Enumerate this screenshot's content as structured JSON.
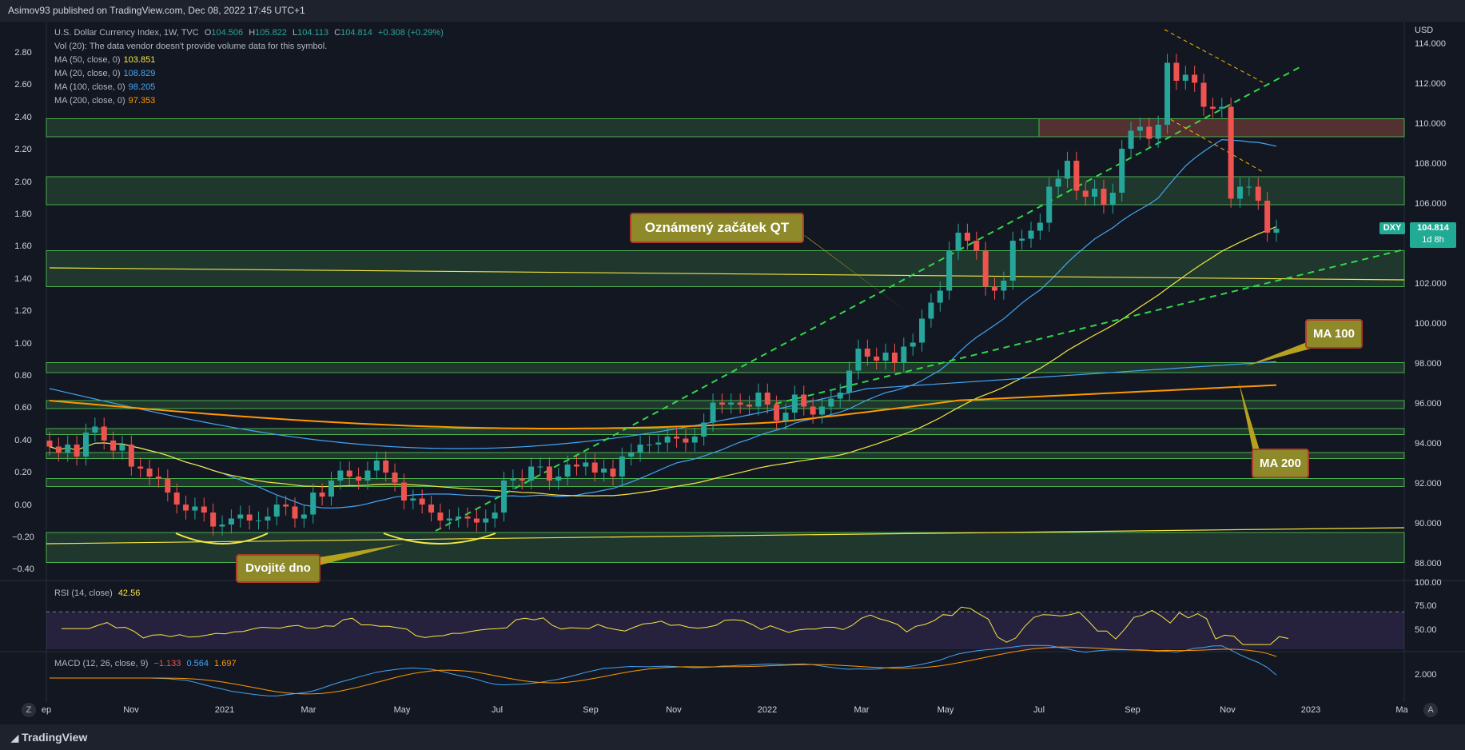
{
  "header": {
    "published": "Asimov93 published on TradingView.com, Dec 08, 2022 17:45 UTC+1"
  },
  "legend": {
    "symbol": "U.S. Dollar Currency Index, 1W, TVC",
    "ohlc": {
      "o_label": "O",
      "o": "104.506",
      "h_label": "H",
      "h": "105.822",
      "l_label": "L",
      "l": "104.113",
      "c_label": "C",
      "c": "104.814",
      "chg": "+0.308 (+0.29%)"
    },
    "vol": "Vol (20): The data vendor doesn't provide volume data for this symbol.",
    "mas": [
      {
        "label": "MA (50, close, 0)",
        "value": "103.851",
        "color": "#f5e642"
      },
      {
        "label": "MA (20, close, 0)",
        "value": "108.829",
        "color": "#42a5f5"
      },
      {
        "label": "MA (100, close, 0)",
        "value": "98.205",
        "color": "#42a5f5"
      },
      {
        "label": "MA (200, close, 0)",
        "value": "97.353",
        "color": "#ff9800"
      }
    ]
  },
  "rsi_legend": {
    "label": "RSI (14, close)",
    "value": "42.56"
  },
  "macd_legend": {
    "label": "MACD (12, 26, close, 9)",
    "v1": "−1.133",
    "v2": "0.564",
    "v3": "1.697"
  },
  "callouts": {
    "qt": "Oznámený začátek QT",
    "dno": "Dvojité dno",
    "ma100": "MA 100",
    "ma200": "MA 200"
  },
  "price_tag": {
    "symbol": "DXY",
    "price": "104.814",
    "countdown": "1d 8h"
  },
  "axis_right": {
    "currency": "USD",
    "ticks": [
      "114.000",
      "112.000",
      "110.000",
      "108.000",
      "106.000",
      "102.000",
      "100.000",
      "98.000",
      "96.000",
      "94.000",
      "92.000",
      "90.000",
      "88.000"
    ],
    "rsi_ticks": [
      "100.00",
      "75.00",
      "50.00"
    ],
    "macd_ticks": [
      "2.000"
    ]
  },
  "axis_left": {
    "ticks": [
      "2.80",
      "2.60",
      "2.40",
      "2.20",
      "2.00",
      "1.80",
      "1.60",
      "1.40",
      "1.20",
      "1.00",
      "0.80",
      "0.60",
      "0.40",
      "0.20",
      "0.00",
      "−0.20",
      "−0.40"
    ]
  },
  "time_axis": [
    "ep",
    "Nov",
    "2021",
    "Mar",
    "May",
    "Jul",
    "Sep",
    "Nov",
    "2022",
    "Mar",
    "May",
    "Jul",
    "Sep",
    "Nov",
    "2023",
    "Ma"
  ],
  "buttons": {
    "zoom": "Z",
    "auto": "A"
  },
  "brand": "TradingView",
  "chart_data": {
    "type": "candlestick",
    "symbol": "DXY",
    "interval": "1W",
    "yaxis": "USD",
    "candles_close": [
      93.9,
      93.6,
      94.0,
      93.4,
      94.6,
      94.9,
      94.2,
      93.7,
      94.0,
      92.9,
      92.8,
      92.4,
      92.3,
      91.6,
      91.0,
      90.7,
      90.9,
      90.6,
      89.9,
      90.0,
      90.3,
      90.5,
      90.2,
      90.2,
      90.4,
      91.0,
      90.9,
      90.3,
      90.5,
      91.6,
      91.4,
      92.2,
      92.7,
      92.4,
      92.2,
      92.7,
      93.2,
      92.6,
      92.1,
      91.2,
      91.3,
      91.0,
      90.6,
      90.2,
      90.3,
      90.4,
      90.3,
      90.1,
      90.3,
      90.6,
      92.2,
      92.3,
      92.2,
      92.9,
      92.9,
      92.2,
      92.4,
      93.0,
      92.9,
      93.1,
      92.6,
      92.8,
      92.4,
      93.4,
      93.6,
      94.0,
      94.0,
      94.1,
      94.4,
      94.3,
      94.1,
      94.4,
      95.1,
      96.1,
      96.0,
      96.1,
      96.0,
      95.9,
      96.6,
      96.0,
      95.2,
      95.6,
      96.5,
      95.9,
      95.5,
      95.9,
      96.3,
      96.6,
      97.7,
      98.8,
      98.4,
      98.2,
      98.6,
      98.1,
      98.9,
      99.1,
      100.3,
      101.1,
      101.7,
      103.7,
      104.6,
      104.2,
      103.7,
      101.9,
      101.7,
      102.2,
      104.2,
      104.3,
      104.7,
      105.1,
      106.9,
      107.3,
      108.2,
      106.7,
      106.4,
      106.8,
      106.0,
      106.6,
      108.8,
      109.7,
      109.9,
      109.3,
      110.0,
      113.1,
      112.2,
      112.5,
      112.1,
      110.9,
      110.8,
      110.9,
      106.3,
      106.9,
      106.9,
      106.2,
      104.6,
      104.8
    ],
    "ma": [
      {
        "name": "MA 50",
        "color": "#f5e642",
        "value": 103.851
      },
      {
        "name": "MA 20",
        "color": "#42a5f5",
        "value": 108.829
      },
      {
        "name": "MA 100",
        "color": "#42a5f5",
        "value": 98.205
      },
      {
        "name": "MA 200",
        "color": "#ff9800",
        "value": 97.353
      }
    ],
    "zones": [
      [
        109.4,
        110.3
      ],
      [
        106.0,
        107.4
      ],
      [
        101.9,
        103.7
      ],
      [
        97.6,
        98.1
      ],
      [
        95.8,
        96.2
      ],
      [
        94.5,
        94.8
      ],
      [
        93.3,
        93.6
      ],
      [
        91.9,
        92.3
      ],
      [
        88.1,
        89.6
      ]
    ],
    "ylim": [
      87.5,
      115.5
    ],
    "rsi": {
      "value": 42.56,
      "levels": [
        70,
        30
      ],
      "ylim": [
        30,
        100
      ]
    },
    "macd": {
      "macd": -1.133,
      "signal": 0.564,
      "hist": 1.697
    }
  }
}
